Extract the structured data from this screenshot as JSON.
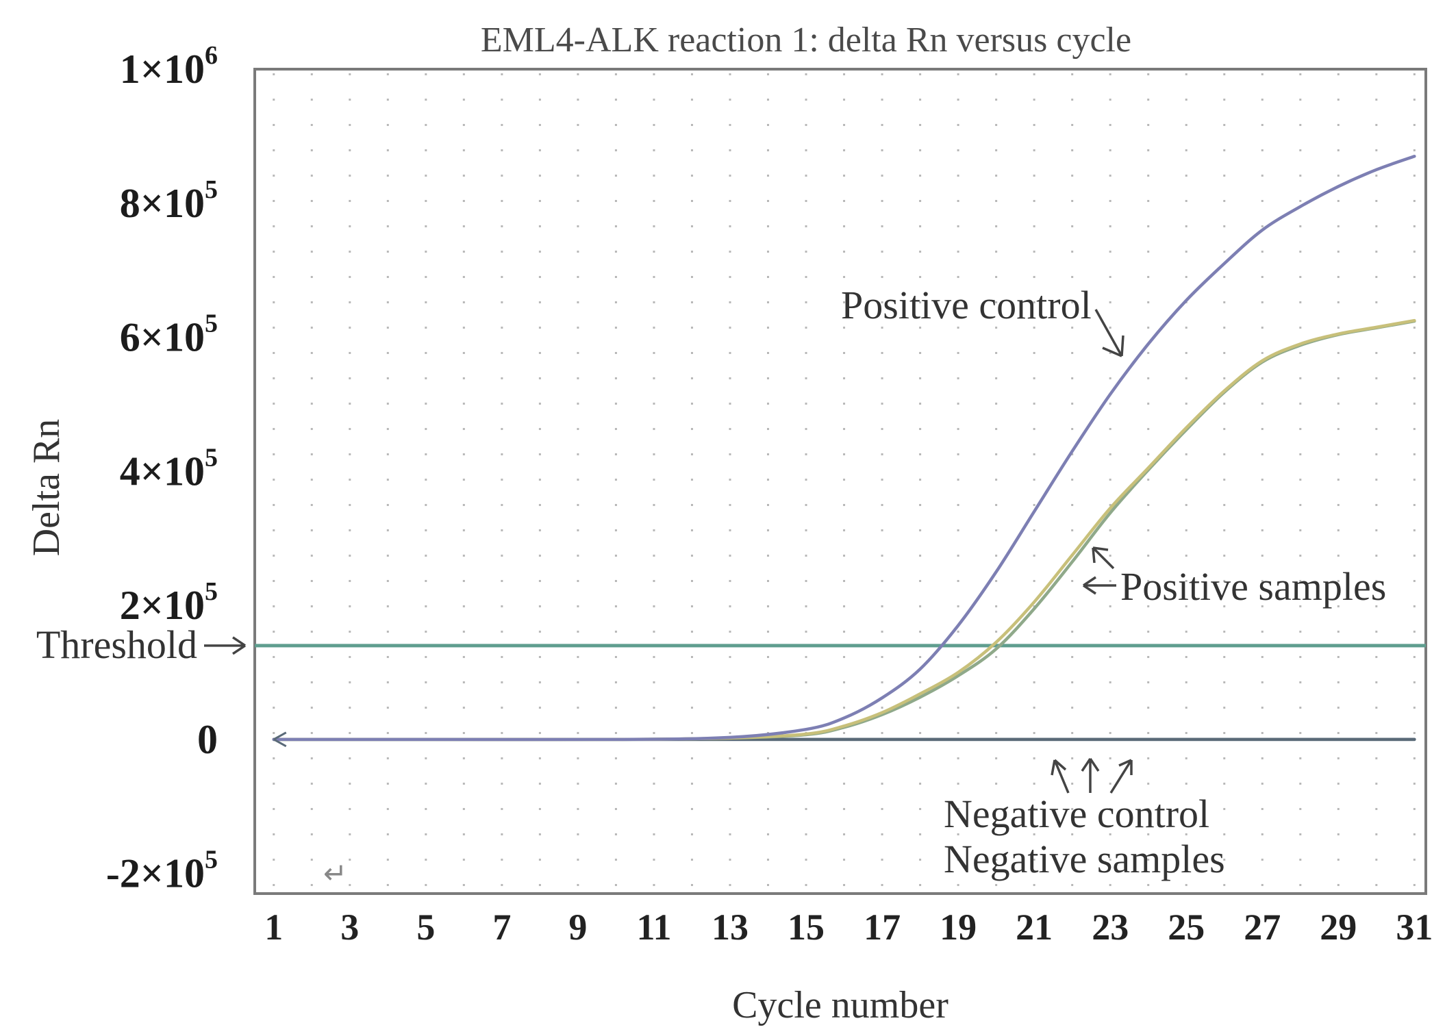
{
  "chart_data": {
    "type": "line",
    "title": "EML4-ALK reaction 1: delta Rn versus cycle",
    "xlabel": "Cycle number",
    "ylabel": "Delta Rn",
    "xlim": [
      0.5,
      31.3
    ],
    "ylim": [
      -230000,
      1000000
    ],
    "x_ticks": [
      1,
      3,
      5,
      7,
      9,
      11,
      13,
      15,
      17,
      19,
      21,
      23,
      25,
      27,
      29,
      31
    ],
    "y_ticks": [
      {
        "value": 1000000,
        "label": "1×10",
        "exp": "6"
      },
      {
        "value": 800000,
        "label": "8×10",
        "exp": "5"
      },
      {
        "value": 600000,
        "label": "6×10",
        "exp": "5"
      },
      {
        "value": 400000,
        "label": "4×10",
        "exp": "5"
      },
      {
        "value": 200000,
        "label": "2×10",
        "exp": "5"
      },
      {
        "value": 0,
        "label": "0",
        "exp": ""
      },
      {
        "value": -200000,
        "label": "-2×10",
        "exp": "5"
      }
    ],
    "threshold": {
      "value": 140000,
      "label": "Threshold",
      "color": "#5f9e8f"
    },
    "grid": "dotted",
    "series": [
      {
        "name": "Positive control",
        "color": "#7d7fb3",
        "x": [
          1,
          5,
          10,
          13,
          15,
          16,
          17,
          18,
          19,
          20,
          21,
          22,
          23,
          24,
          25,
          26,
          27,
          28,
          29,
          30,
          31
        ],
        "y": [
          0,
          0,
          0,
          3000,
          15000,
          32000,
          62000,
          105000,
          170000,
          250000,
          340000,
          430000,
          515000,
          590000,
          655000,
          710000,
          760000,
          795000,
          825000,
          850000,
          870000
        ]
      },
      {
        "name": "Positive samples (1)",
        "color": "#c8c07a",
        "x": [
          1,
          5,
          10,
          13,
          15,
          16,
          17,
          18,
          19,
          20,
          21,
          22,
          23,
          24,
          25,
          26,
          27,
          28,
          29,
          30,
          31
        ],
        "y": [
          0,
          0,
          0,
          2000,
          8000,
          20000,
          40000,
          68000,
          100000,
          145000,
          205000,
          275000,
          345000,
          405000,
          465000,
          520000,
          565000,
          590000,
          605000,
          615000,
          625000
        ]
      },
      {
        "name": "Positive samples (2)",
        "color": "#8fa98a",
        "x": [
          1,
          5,
          10,
          13,
          15,
          16,
          17,
          18,
          19,
          20,
          21,
          22,
          23,
          24,
          25,
          26,
          27,
          28,
          29,
          30,
          31
        ],
        "y": [
          0,
          0,
          0,
          2000,
          7000,
          18000,
          37000,
          63000,
          95000,
          135000,
          195000,
          265000,
          338000,
          402000,
          462000,
          518000,
          563000,
          588000,
          604000,
          614000,
          624000
        ]
      },
      {
        "name": "Negative control",
        "color": "#5a6a78",
        "x": [
          1,
          31
        ],
        "y": [
          0,
          0
        ]
      },
      {
        "name": "Negative samples",
        "color": "#6f7f8a",
        "x": [
          1,
          31
        ],
        "y": [
          0,
          0
        ]
      }
    ],
    "annotations": [
      {
        "text": "Positive control"
      },
      {
        "text": "Positive samples"
      },
      {
        "text": "Negative control"
      },
      {
        "text": "Negative samples"
      }
    ],
    "stray_glyph": "↵"
  }
}
